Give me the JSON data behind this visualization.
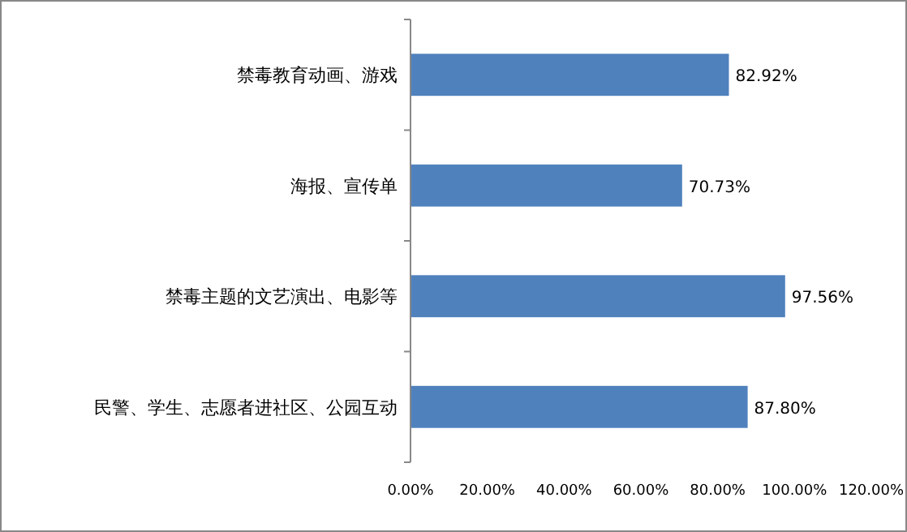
{
  "chart_data": {
    "type": "bar",
    "orientation": "horizontal",
    "categories": [
      "禁毒教育动画、游戏",
      "海报、宣传单",
      "禁毒主题的文艺演出、电影等",
      "民警、学生、志愿者进社区、公园互动"
    ],
    "values": [
      82.92,
      70.73,
      97.56,
      87.8
    ],
    "value_labels": [
      "82.92%",
      "70.73%",
      "97.56%",
      "87.80%"
    ],
    "color": "#4f81bd",
    "xlim": [
      0,
      120
    ],
    "xticks": [
      {
        "value": 0,
        "label": "0.00%"
      },
      {
        "value": 20,
        "label": "20.00%"
      },
      {
        "value": 40,
        "label": "40.00%"
      },
      {
        "value": 60,
        "label": "60.00%"
      },
      {
        "value": 80,
        "label": "80.00%"
      },
      {
        "value": 100,
        "label": "100.00%"
      },
      {
        "value": 120,
        "label": "120.00%"
      }
    ],
    "grid": false
  }
}
